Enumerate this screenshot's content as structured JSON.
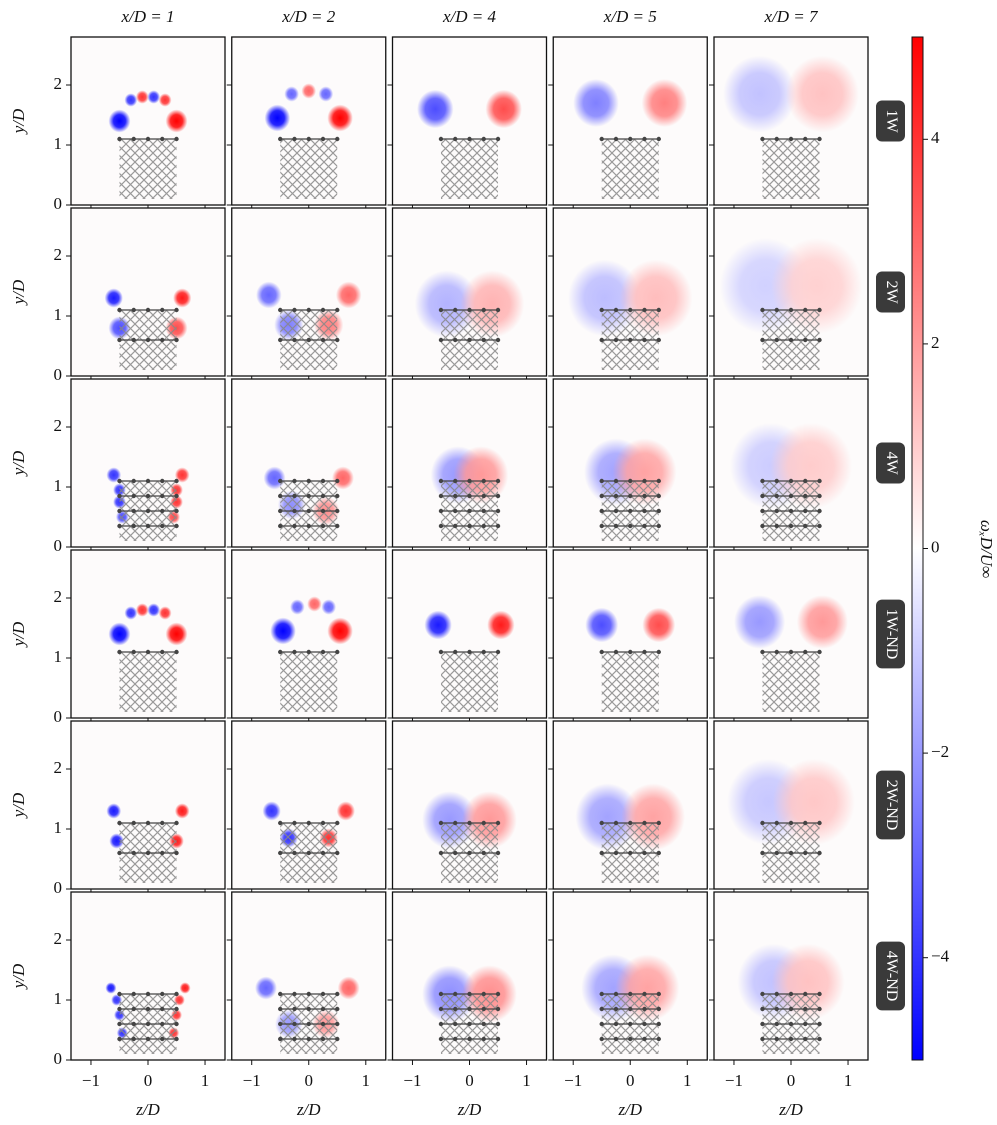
{
  "chart_data": {
    "type": "vorticity-grid",
    "columns": [
      "x/D = 1",
      "x/D = 2",
      "x/D = 4",
      "x/D = 5",
      "x/D = 7"
    ],
    "rows": [
      "1W",
      "2W",
      "4W",
      "1W-ND",
      "2W-ND",
      "4W-ND"
    ],
    "xlabel": "z/D",
    "ylabel": "y/D",
    "xlim": [
      -1.35,
      1.35
    ],
    "ylim": [
      0,
      2.8
    ],
    "xticks": [
      {
        "value": -1,
        "label": "−1"
      },
      0,
      1
    ],
    "yticks": [
      0,
      1,
      2
    ],
    "colorbar": {
      "label": "ωₓD/U∞",
      "lim": [
        -5,
        5
      ],
      "ticks": [
        {
          "value": -4,
          "label": "−4"
        },
        {
          "value": -2,
          "label": "−2"
        },
        0,
        2,
        4
      ],
      "colors": [
        "#0000ff",
        "#ffffff",
        "#ff0000"
      ]
    },
    "farm_extent": {
      "z": [
        -0.5,
        0.5
      ],
      "y": [
        0.1,
        1.1
      ]
    },
    "turbine_z": [
      -0.5,
      -0.25,
      0,
      0.25,
      0.5
    ],
    "turbine_rows": [
      [
        1.1
      ],
      [
        1.1,
        0.6
      ],
      [
        1.1,
        0.85,
        0.6,
        0.35
      ],
      [
        1.1
      ],
      [
        1.1,
        0.6
      ],
      [
        1.1,
        0.85,
        0.6,
        0.35
      ]
    ],
    "panels": [
      [
        {
          "vortices": [
            [
              -0.5,
              1.4,
              -5,
              0.12
            ],
            [
              0.5,
              1.4,
              5,
              0.12
            ],
            [
              -0.3,
              1.75,
              -4,
              0.07
            ],
            [
              -0.1,
              1.8,
              4,
              0.07
            ],
            [
              0.1,
              1.8,
              -4,
              0.07
            ],
            [
              0.3,
              1.75,
              4,
              0.07
            ]
          ]
        },
        {
          "vortices": [
            [
              -0.55,
              1.45,
              -5,
              0.14
            ],
            [
              0.55,
              1.45,
              5,
              0.14
            ],
            [
              -0.3,
              1.85,
              -3,
              0.08
            ],
            [
              0,
              1.9,
              3,
              0.08
            ],
            [
              0.3,
              1.85,
              -3,
              0.08
            ]
          ]
        },
        {
          "vortices": [
            [
              -0.6,
              1.6,
              -3.5,
              0.2
            ],
            [
              0.6,
              1.6,
              3.5,
              0.2
            ]
          ]
        },
        {
          "vortices": [
            [
              -0.6,
              1.7,
              -2.5,
              0.25
            ],
            [
              0.6,
              1.7,
              2.5,
              0.25
            ]
          ]
        },
        {
          "vortices": [
            [
              -0.55,
              1.85,
              -1.2,
              0.4
            ],
            [
              0.55,
              1.85,
              1.2,
              0.4
            ]
          ]
        }
      ],
      [
        {
          "vortices": [
            [
              -0.6,
              1.3,
              -4.5,
              0.1
            ],
            [
              0.6,
              1.3,
              4.5,
              0.1
            ],
            [
              -0.5,
              0.8,
              -3.5,
              0.12
            ],
            [
              0.5,
              0.8,
              3.5,
              0.12
            ]
          ]
        },
        {
          "vortices": [
            [
              -0.7,
              1.35,
              -3,
              0.14
            ],
            [
              0.7,
              1.35,
              3,
              0.14
            ],
            [
              -0.35,
              0.85,
              -2.5,
              0.16
            ],
            [
              0.35,
              0.85,
              2.5,
              0.16
            ]
          ]
        },
        {
          "vortices": [
            [
              -0.4,
              1.2,
              -1.5,
              0.35
            ],
            [
              0.4,
              1.2,
              1.5,
              0.35
            ]
          ]
        },
        {
          "vortices": [
            [
              -0.45,
              1.3,
              -1.3,
              0.4
            ],
            [
              0.45,
              1.3,
              1.3,
              0.4
            ]
          ]
        },
        {
          "vortices": [
            [
              -0.45,
              1.5,
              -0.9,
              0.5
            ],
            [
              0.45,
              1.5,
              0.9,
              0.5
            ]
          ]
        }
      ],
      [
        {
          "vortices": [
            [
              -0.6,
              1.2,
              -4,
              0.08
            ],
            [
              0.6,
              1.2,
              4,
              0.08
            ],
            [
              -0.5,
              0.95,
              -4,
              0.07
            ],
            [
              0.5,
              0.95,
              4,
              0.07
            ],
            [
              -0.5,
              0.75,
              -4,
              0.07
            ],
            [
              0.5,
              0.75,
              4,
              0.07
            ],
            [
              -0.45,
              0.5,
              -3.5,
              0.07
            ],
            [
              0.45,
              0.5,
              3.5,
              0.07
            ]
          ]
        },
        {
          "vortices": [
            [
              -0.6,
              1.15,
              -3,
              0.12
            ],
            [
              0.6,
              1.15,
              3,
              0.12
            ],
            [
              -0.3,
              0.7,
              -2.2,
              0.15
            ],
            [
              0.3,
              0.6,
              2.2,
              0.15
            ]
          ]
        },
        {
          "vortices": [
            [
              -0.2,
              1.2,
              -2,
              0.3
            ],
            [
              0.2,
              1.2,
              2,
              0.3
            ]
          ]
        },
        {
          "vortices": [
            [
              -0.25,
              1.25,
              -1.8,
              0.35
            ],
            [
              0.25,
              1.25,
              1.8,
              0.35
            ]
          ]
        },
        {
          "vortices": [
            [
              -0.35,
              1.35,
              -1,
              0.45
            ],
            [
              0.35,
              1.35,
              1,
              0.45
            ]
          ]
        }
      ],
      [
        {
          "vortices": [
            [
              -0.5,
              1.4,
              -5,
              0.12
            ],
            [
              0.5,
              1.4,
              5,
              0.12
            ],
            [
              -0.3,
              1.75,
              -4,
              0.07
            ],
            [
              -0.1,
              1.8,
              4,
              0.07
            ],
            [
              0.1,
              1.8,
              -4,
              0.07
            ],
            [
              0.3,
              1.75,
              4,
              0.07
            ]
          ]
        },
        {
          "vortices": [
            [
              -0.45,
              1.45,
              -5,
              0.14
            ],
            [
              0.55,
              1.45,
              5,
              0.14
            ],
            [
              -0.2,
              1.85,
              -3,
              0.08
            ],
            [
              0.1,
              1.9,
              3,
              0.08
            ],
            [
              0.35,
              1.85,
              -3,
              0.08
            ]
          ]
        },
        {
          "vortices": [
            [
              -0.55,
              1.55,
              -4.5,
              0.15
            ],
            [
              0.55,
              1.55,
              4.5,
              0.15
            ]
          ]
        },
        {
          "vortices": [
            [
              -0.5,
              1.55,
              -3.5,
              0.18
            ],
            [
              0.5,
              1.55,
              3.5,
              0.18
            ]
          ]
        },
        {
          "vortices": [
            [
              -0.55,
              1.6,
              -2,
              0.28
            ],
            [
              0.55,
              1.6,
              2,
              0.28
            ]
          ]
        }
      ],
      [
        {
          "vortices": [
            [
              -0.6,
              1.3,
              -4.5,
              0.08
            ],
            [
              0.6,
              1.3,
              4.5,
              0.08
            ],
            [
              -0.55,
              0.8,
              -4.5,
              0.08
            ],
            [
              0.5,
              0.8,
              4.5,
              0.08
            ]
          ]
        },
        {
          "vortices": [
            [
              -0.65,
              1.3,
              -4,
              0.1
            ],
            [
              0.65,
              1.3,
              4,
              0.1
            ],
            [
              -0.35,
              0.85,
              -4,
              0.1
            ],
            [
              0.35,
              0.85,
              4,
              0.1
            ]
          ]
        },
        {
          "vortices": [
            [
              -0.35,
              1.15,
              -2,
              0.3
            ],
            [
              0.35,
              1.15,
              2,
              0.3
            ]
          ]
        },
        {
          "vortices": [
            [
              -0.4,
              1.2,
              -1.8,
              0.35
            ],
            [
              0.4,
              1.2,
              1.8,
              0.35
            ]
          ]
        },
        {
          "vortices": [
            [
              -0.4,
              1.45,
              -1.1,
              0.45
            ],
            [
              0.4,
              1.45,
              1.1,
              0.45
            ]
          ]
        }
      ],
      [
        {
          "vortices": [
            [
              -0.65,
              1.2,
              -4.5,
              0.06
            ],
            [
              0.65,
              1.2,
              4.5,
              0.06
            ],
            [
              -0.55,
              1,
              -4,
              0.06
            ],
            [
              0.55,
              1,
              4,
              0.06
            ],
            [
              -0.5,
              0.75,
              -4,
              0.06
            ],
            [
              0.5,
              0.75,
              4,
              0.06
            ],
            [
              -0.45,
              0.45,
              -4,
              0.06
            ],
            [
              0.45,
              0.45,
              4,
              0.06
            ]
          ]
        },
        {
          "vortices": [
            [
              -0.75,
              1.2,
              -3,
              0.12
            ],
            [
              0.7,
              1.2,
              3,
              0.12
            ],
            [
              -0.35,
              0.6,
              -2,
              0.15
            ],
            [
              0.3,
              0.6,
              2,
              0.15
            ]
          ]
        },
        {
          "vortices": [
            [
              -0.35,
              1.1,
              -2.2,
              0.3
            ],
            [
              0.35,
              1.1,
              2.2,
              0.3
            ]
          ]
        },
        {
          "vortices": [
            [
              -0.3,
              1.2,
              -1.8,
              0.35
            ],
            [
              0.3,
              1.2,
              1.8,
              0.35
            ]
          ]
        },
        {
          "vortices": [
            [
              -0.3,
              1.3,
              -1.2,
              0.4
            ],
            [
              0.3,
              1.3,
              1.2,
              0.4
            ]
          ]
        }
      ]
    ]
  }
}
